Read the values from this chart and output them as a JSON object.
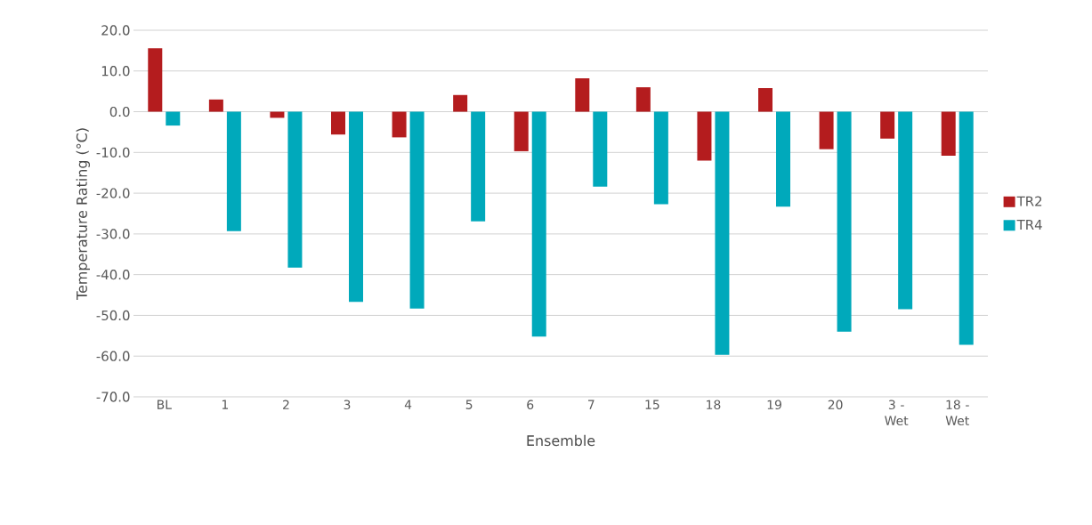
{
  "chart_data": {
    "type": "bar",
    "xlabel": "Ensemble",
    "ylabel": "Temperature Rating (°C)",
    "categories": [
      "BL",
      "1",
      "2",
      "3",
      "4",
      "5",
      "6",
      "7",
      "15",
      "18",
      "19",
      "20",
      "3 - Wet",
      "18 - Wet"
    ],
    "series": [
      {
        "name": "TR2",
        "color": "#b41c1e",
        "values": [
          15.6,
          3.0,
          -1.5,
          -5.6,
          -6.3,
          4.1,
          -9.7,
          8.2,
          6.0,
          -12.0,
          5.8,
          -9.2,
          -6.6,
          -10.8
        ]
      },
      {
        "name": "TR4",
        "color": "#00a9bb",
        "values": [
          -3.4,
          -29.3,
          -38.3,
          -46.7,
          -48.3,
          -26.9,
          -55.2,
          -18.4,
          -22.7,
          -59.7,
          -23.3,
          -54.0,
          -48.5,
          -57.2
        ]
      }
    ],
    "ylim": [
      -70,
      20
    ],
    "yticks": [
      {
        "value": -70,
        "label": "-70.0"
      },
      {
        "value": -60,
        "label": "-60.0"
      },
      {
        "value": -50,
        "label": "-50.0"
      },
      {
        "value": -40,
        "label": "-40.0"
      },
      {
        "value": -30,
        "label": "-30.0"
      },
      {
        "value": -20,
        "label": "-20.0"
      },
      {
        "value": -10,
        "label": "-10.0"
      },
      {
        "value": 0,
        "label": "0.0"
      },
      {
        "value": 10,
        "label": "10.0"
      },
      {
        "value": 20,
        "label": "20.0"
      }
    ],
    "grid": "y",
    "legend": "right"
  }
}
